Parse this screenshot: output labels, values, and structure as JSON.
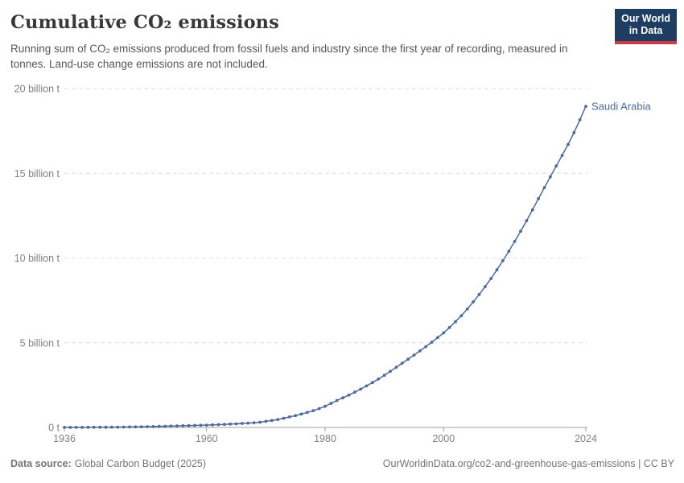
{
  "header": {
    "title": "Cumulative CO₂ emissions",
    "subtitle": "Running sum of CO₂ emissions produced from fossil fuels and industry since the first year of recording, measured in tonnes. Land-use change emissions are not included.",
    "logo": {
      "line1": "Our World",
      "line2": "in Data"
    }
  },
  "chart_data": {
    "type": "line",
    "title": "Cumulative CO₂ emissions",
    "entity": "Saudi Arabia",
    "unit": "tonnes",
    "color": "#4c6a9c",
    "xlim": [
      1936,
      2024
    ],
    "ylim": [
      0,
      20
    ],
    "grid": "horizontal-dashed",
    "legend_position": "end-of-line-label",
    "xticks": [
      1936,
      1960,
      1980,
      2000,
      2024
    ],
    "yticks": [
      {
        "value": 0,
        "label": "0 t"
      },
      {
        "value": 5,
        "label": "5 billion t"
      },
      {
        "value": 10,
        "label": "10 billion t"
      },
      {
        "value": 15,
        "label": "15 billion t"
      },
      {
        "value": 20,
        "label": "20 billion t"
      }
    ],
    "x": [
      1936,
      1937,
      1938,
      1939,
      1940,
      1941,
      1942,
      1943,
      1944,
      1945,
      1946,
      1947,
      1948,
      1949,
      1950,
      1951,
      1952,
      1953,
      1954,
      1955,
      1956,
      1957,
      1958,
      1959,
      1960,
      1961,
      1962,
      1963,
      1964,
      1965,
      1966,
      1967,
      1968,
      1969,
      1970,
      1971,
      1972,
      1973,
      1974,
      1975,
      1976,
      1977,
      1978,
      1979,
      1980,
      1981,
      1982,
      1983,
      1984,
      1985,
      1986,
      1987,
      1988,
      1989,
      1990,
      1991,
      1992,
      1993,
      1994,
      1995,
      1996,
      1997,
      1998,
      1999,
      2000,
      2001,
      2002,
      2003,
      2004,
      2005,
      2006,
      2007,
      2008,
      2009,
      2010,
      2011,
      2012,
      2013,
      2014,
      2015,
      2016,
      2017,
      2018,
      2019,
      2020,
      2021,
      2022,
      2023,
      2024
    ],
    "values": [
      0.003,
      0.004,
      0.005,
      0.007,
      0.009,
      0.011,
      0.013,
      0.015,
      0.018,
      0.021,
      0.025,
      0.029,
      0.034,
      0.04,
      0.047,
      0.054,
      0.062,
      0.07,
      0.079,
      0.088,
      0.098,
      0.108,
      0.118,
      0.128,
      0.14,
      0.153,
      0.167,
      0.182,
      0.198,
      0.216,
      0.236,
      0.258,
      0.282,
      0.31,
      0.36,
      0.41,
      0.47,
      0.54,
      0.62,
      0.7,
      0.79,
      0.89,
      0.99,
      1.11,
      1.25,
      1.42,
      1.59,
      1.75,
      1.91,
      2.08,
      2.26,
      2.45,
      2.65,
      2.86,
      3.08,
      3.31,
      3.55,
      3.79,
      4.03,
      4.27,
      4.52,
      4.77,
      5.03,
      5.3,
      5.58,
      5.9,
      6.24,
      6.6,
      6.99,
      7.41,
      7.85,
      8.31,
      8.79,
      9.3,
      9.84,
      10.4,
      10.98,
      11.58,
      12.2,
      12.84,
      13.5,
      14.15,
      14.79,
      15.43,
      16.05,
      16.7,
      17.4,
      18.15,
      18.95
    ],
    "series": [
      {
        "name": "Saudi Arabia",
        "color": "#4c6a9c"
      }
    ]
  },
  "footer": {
    "source_label": "Data source:",
    "source_value": "Global Carbon Budget (2025)",
    "right": "OurWorldinData.org/co2-and-greenhouse-gas-emissions | CC BY"
  },
  "colors": {
    "line": "#4c6a9c",
    "entity_label": "#4c6a9c",
    "grid": "#dedede",
    "axis": "#9e9e9e",
    "tick_label": "#808080",
    "logo_bg": "#1d3d63",
    "logo_red": "#cb3b46"
  }
}
